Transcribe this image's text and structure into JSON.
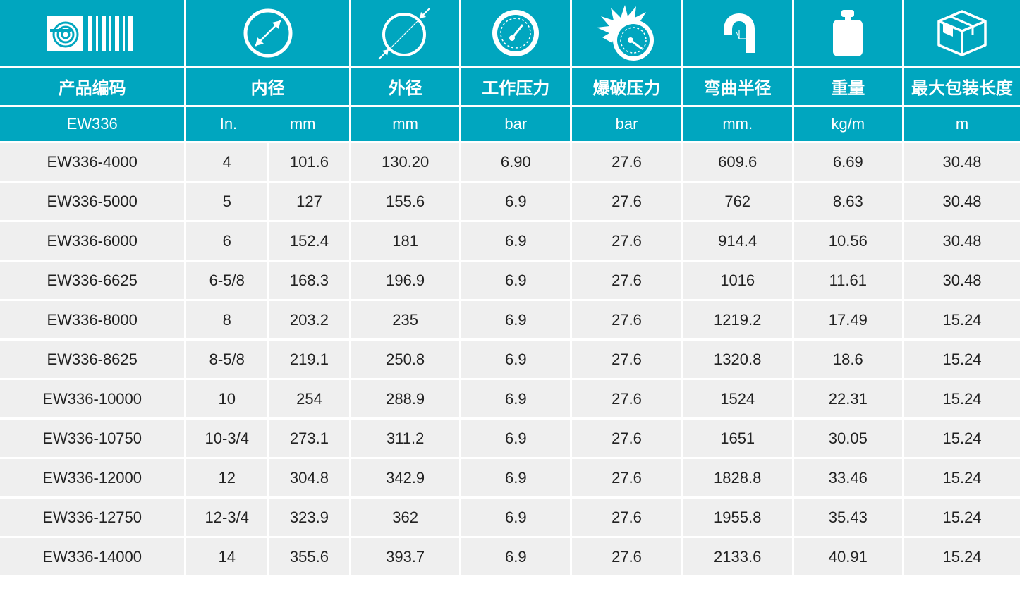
{
  "colors": {
    "header_bg": "#00a6bf",
    "row_bg": "#efefef",
    "text_light": "#ffffff",
    "text_dark": "#222222"
  },
  "icons": [
    "brand-logo-icon",
    "inner-diameter-icon",
    "outer-diameter-icon",
    "working-pressure-icon",
    "burst-pressure-icon",
    "bend-radius-icon",
    "weight-icon",
    "package-length-icon"
  ],
  "header": {
    "code": "产品编码",
    "inner_diameter": "内径",
    "outer_diameter": "外径",
    "working_pressure": "工作压力",
    "burst_pressure": "爆破压力",
    "bend_radius": "弯曲半径",
    "weight": "重量",
    "max_length": "最大包装长度"
  },
  "units": {
    "code": "EW336",
    "id_in": "In.",
    "id_mm": "mm",
    "od": "mm",
    "wp": "bar",
    "bp": "bar",
    "br": "mm.",
    "weight": "kg/m",
    "length": "m"
  },
  "rows": [
    {
      "code": "EW336-4000",
      "id_in": "4",
      "id_mm": "101.6",
      "od": "130.20",
      "wp": "6.90",
      "bp": "27.6",
      "br": "609.6",
      "weight": "6.69",
      "length": "30.48"
    },
    {
      "code": "EW336-5000",
      "id_in": "5",
      "id_mm": "127",
      "od": "155.6",
      "wp": "6.9",
      "bp": "27.6",
      "br": "762",
      "weight": "8.63",
      "length": "30.48"
    },
    {
      "code": "EW336-6000",
      "id_in": "6",
      "id_mm": "152.4",
      "od": "181",
      "wp": "6.9",
      "bp": "27.6",
      "br": "914.4",
      "weight": "10.56",
      "length": "30.48"
    },
    {
      "code": "EW336-6625",
      "id_in": "6-5/8",
      "id_mm": "168.3",
      "od": "196.9",
      "wp": "6.9",
      "bp": "27.6",
      "br": "1016",
      "weight": "11.61",
      "length": "30.48"
    },
    {
      "code": "EW336-8000",
      "id_in": "8",
      "id_mm": "203.2",
      "od": "235",
      "wp": "6.9",
      "bp": "27.6",
      "br": "1219.2",
      "weight": "17.49",
      "length": "15.24"
    },
    {
      "code": "EW336-8625",
      "id_in": "8-5/8",
      "id_mm": "219.1",
      "od": "250.8",
      "wp": "6.9",
      "bp": "27.6",
      "br": "1320.8",
      "weight": "18.6",
      "length": "15.24"
    },
    {
      "code": "EW336-10000",
      "id_in": "10",
      "id_mm": "254",
      "od": "288.9",
      "wp": "6.9",
      "bp": "27.6",
      "br": "1524",
      "weight": "22.31",
      "length": "15.24"
    },
    {
      "code": "EW336-10750",
      "id_in": "10-3/4",
      "id_mm": "273.1",
      "od": "311.2",
      "wp": "6.9",
      "bp": "27.6",
      "br": "1651",
      "weight": "30.05",
      "length": "15.24"
    },
    {
      "code": "EW336-12000",
      "id_in": "12",
      "id_mm": "304.8",
      "od": "342.9",
      "wp": "6.9",
      "bp": "27.6",
      "br": "1828.8",
      "weight": "33.46",
      "length": "15.24"
    },
    {
      "code": "EW336-12750",
      "id_in": "12-3/4",
      "id_mm": "323.9",
      "od": "362",
      "wp": "6.9",
      "bp": "27.6",
      "br": "1955.8",
      "weight": "35.43",
      "length": "15.24"
    },
    {
      "code": "EW336-14000",
      "id_in": "14",
      "id_mm": "355.6",
      "od": "393.7",
      "wp": "6.9",
      "bp": "27.6",
      "br": "2133.6",
      "weight": "40.91",
      "length": "15.24"
    }
  ]
}
